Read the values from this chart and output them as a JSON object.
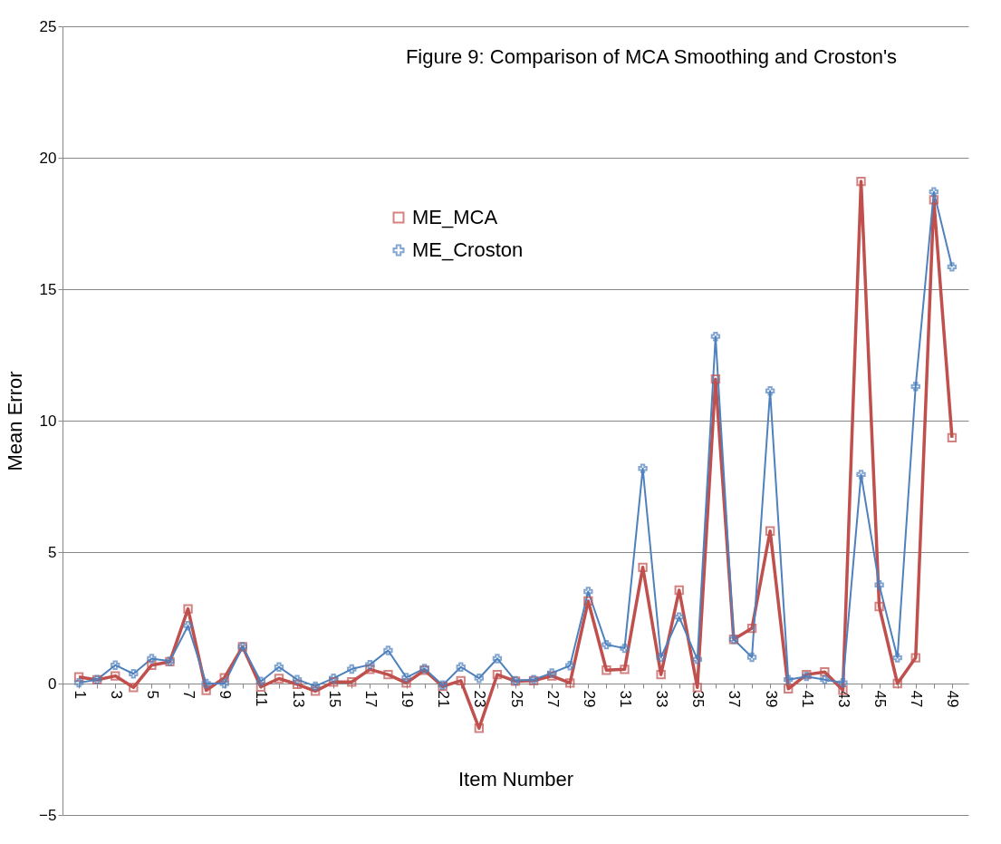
{
  "chart_data": {
    "type": "line",
    "title": "Figure 9: Comparison of MCA Smoothing and Croston's",
    "xlabel": "Item Number",
    "ylabel": "Mean Error",
    "categories": [
      "1",
      null,
      "3",
      null,
      "5",
      null,
      "7",
      null,
      "9",
      null,
      "11",
      null,
      "13",
      null,
      "15",
      null,
      "17",
      null,
      "19",
      null,
      "21",
      null,
      "23",
      null,
      "25",
      null,
      "27",
      null,
      "29",
      null,
      "31",
      null,
      "33",
      null,
      "35",
      null,
      "37",
      null,
      "39",
      null,
      "41",
      null,
      "43",
      null,
      "45",
      null,
      "47",
      null,
      "49"
    ],
    "ylim": [
      -5,
      25
    ],
    "yticks": [
      -5,
      0,
      5,
      10,
      15,
      20,
      25
    ],
    "grid": "y",
    "legend": "top",
    "line_style": "solid",
    "series": [
      {
        "name": "ME_MCA",
        "color": "#c0504d",
        "marker": "square",
        "values": [
          0.25,
          0.14,
          0.29,
          -0.15,
          0.7,
          0.83,
          2.84,
          -0.26,
          0.22,
          1.4,
          -0.13,
          0.19,
          -0.03,
          -0.29,
          0.06,
          0.06,
          0.54,
          0.34,
          0.02,
          0.51,
          -0.11,
          0.11,
          -1.7,
          0.34,
          0.09,
          0.11,
          0.29,
          0.02,
          3.14,
          0.51,
          0.54,
          4.42,
          0.34,
          3.55,
          -0.15,
          11.58,
          1.68,
          2.1,
          5.8,
          -0.2,
          0.34,
          0.44,
          -0.25,
          19.1,
          2.93,
          0,
          0.98,
          18.4,
          9.35
        ]
      },
      {
        "name": "ME_Croston",
        "color": "#4f81bd",
        "marker": "cross",
        "values": [
          0.03,
          0.15,
          0.7,
          0.37,
          0.95,
          0.85,
          2.2,
          0,
          0,
          1.4,
          0.08,
          0.63,
          0.15,
          -0.1,
          0.2,
          0.55,
          0.72,
          1.26,
          0.23,
          0.57,
          -0.06,
          0.63,
          0.2,
          0.95,
          0.11,
          0.15,
          0.4,
          0.68,
          3.5,
          1.48,
          1.34,
          8.18,
          1.0,
          2.53,
          0.92,
          13.2,
          1.68,
          1.0,
          11.13,
          0.15,
          0.27,
          0.15,
          0.03,
          7.95,
          3.75,
          0.98,
          11.3,
          18.7,
          15.85
        ]
      }
    ]
  }
}
